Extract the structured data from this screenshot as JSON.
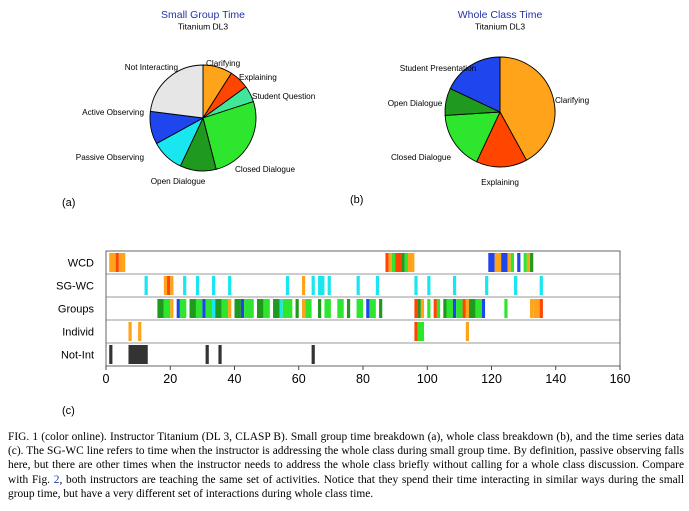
{
  "colors": {
    "Not Interacting": "#e6e6e6",
    "Clarifying": "#ffa31a",
    "Explaining": "#ff4500",
    "Student Question": "#40e69a",
    "Closed Dialogue": "#2ee62e",
    "Open Dialogue": "#1f9a1f",
    "Passive Observing": "#1ae6f0",
    "Active Observing": "#1f45ee",
    "Student Presentation": "#1f45ee"
  },
  "chart_data": [
    {
      "type": "pie",
      "panel_label": "(a)",
      "title": "Small Group Time",
      "subtitle": "Titanium DL3",
      "slices": [
        {
          "label": "Clarifying",
          "value": 9
        },
        {
          "label": "Explaining",
          "value": 6
        },
        {
          "label": "Student Question",
          "value": 5
        },
        {
          "label": "Closed Dialogue",
          "value": 26
        },
        {
          "label": "Open Dialogue",
          "value": 11
        },
        {
          "label": "Passive Observing",
          "value": 10
        },
        {
          "label": "Active Observing",
          "value": 10
        },
        {
          "label": "Not Interacting",
          "value": 23
        }
      ]
    },
    {
      "type": "pie",
      "panel_label": "(b)",
      "title": "Whole Class Time",
      "subtitle": "Titanium DL3",
      "slices": [
        {
          "label": "Clarifying",
          "value": 42
        },
        {
          "label": "Explaining",
          "value": 15
        },
        {
          "label": "Closed Dialogue",
          "value": 17
        },
        {
          "label": "Open Dialogue",
          "value": 8
        },
        {
          "label": "Student Presentation",
          "value": 18
        }
      ]
    },
    {
      "type": "timeline",
      "panel_label": "(c)",
      "xlim": [
        0,
        160
      ],
      "xticks": [
        "0",
        "20",
        "40",
        "60",
        "80",
        "100",
        "120",
        "140",
        "160"
      ],
      "rows": [
        "WCD",
        "SG-WC",
        "Groups",
        "Individ",
        "Not-Int"
      ],
      "segments": {
        "WCD": [
          [
            1,
            3,
            "Clarifying"
          ],
          [
            3,
            4,
            "Explaining"
          ],
          [
            4,
            6,
            "Clarifying"
          ],
          [
            87,
            88,
            "Explaining"
          ],
          [
            88,
            89,
            "Clarifying"
          ],
          [
            89,
            90,
            "Closed Dialogue"
          ],
          [
            90,
            92,
            "Explaining"
          ],
          [
            92,
            93,
            "Open Dialogue"
          ],
          [
            93,
            94,
            "Closed Dialogue"
          ],
          [
            94,
            96,
            "Clarifying"
          ],
          [
            119,
            121,
            "Active Observing"
          ],
          [
            121,
            123,
            "Clarifying"
          ],
          [
            123,
            125,
            "Active Observing"
          ],
          [
            125,
            126,
            "Clarifying"
          ],
          [
            126,
            127,
            "Closed Dialogue"
          ],
          [
            128,
            129,
            "Active Observing"
          ],
          [
            130,
            131,
            "Closed Dialogue"
          ],
          [
            131,
            132,
            "Clarifying"
          ],
          [
            132,
            133,
            "Open Dialogue"
          ]
        ],
        "SG-WC": [
          [
            12,
            13,
            "Passive Observing"
          ],
          [
            18,
            19,
            "Clarifying"
          ],
          [
            19,
            20,
            "Explaining"
          ],
          [
            20,
            21,
            "Clarifying"
          ],
          [
            24,
            25,
            "Passive Observing"
          ],
          [
            28,
            29,
            "Passive Observing"
          ],
          [
            33,
            34,
            "Passive Observing"
          ],
          [
            38,
            39,
            "Passive Observing"
          ],
          [
            56,
            57,
            "Passive Observing"
          ],
          [
            61,
            62,
            "Clarifying"
          ],
          [
            64,
            65,
            "Passive Observing"
          ],
          [
            66,
            68,
            "Passive Observing"
          ],
          [
            69,
            70,
            "Passive Observing"
          ],
          [
            78,
            79,
            "Passive Observing"
          ],
          [
            84,
            85,
            "Passive Observing"
          ],
          [
            96,
            97,
            "Passive Observing"
          ],
          [
            100,
            101,
            "Passive Observing"
          ],
          [
            108,
            109,
            "Passive Observing"
          ],
          [
            118,
            119,
            "Passive Observing"
          ],
          [
            127,
            128,
            "Passive Observing"
          ],
          [
            135,
            136,
            "Passive Observing"
          ]
        ],
        "Groups": [
          [
            16,
            18,
            "Open Dialogue"
          ],
          [
            18,
            20,
            "Closed Dialogue"
          ],
          [
            20,
            21,
            "Clarifying"
          ],
          [
            22,
            23,
            "Active Observing"
          ],
          [
            23,
            25,
            "Closed Dialogue"
          ],
          [
            26,
            28,
            "Open Dialogue"
          ],
          [
            28,
            30,
            "Closed Dialogue"
          ],
          [
            30,
            31,
            "Active Observing"
          ],
          [
            31,
            33,
            "Closed Dialogue"
          ],
          [
            33,
            34,
            "Passive Observing"
          ],
          [
            34,
            36,
            "Open Dialogue"
          ],
          [
            36,
            38,
            "Closed Dialogue"
          ],
          [
            38,
            39,
            "Clarifying"
          ],
          [
            40,
            42,
            "Open Dialogue"
          ],
          [
            42,
            43,
            "Active Observing"
          ],
          [
            43,
            46,
            "Closed Dialogue"
          ],
          [
            47,
            49,
            "Open Dialogue"
          ],
          [
            49,
            51,
            "Closed Dialogue"
          ],
          [
            52,
            54,
            "Open Dialogue"
          ],
          [
            54,
            55,
            "Passive Observing"
          ],
          [
            55,
            58,
            "Closed Dialogue"
          ],
          [
            59,
            60,
            "Open Dialogue"
          ],
          [
            61,
            62,
            "Clarifying"
          ],
          [
            62,
            64,
            "Closed Dialogue"
          ],
          [
            66,
            67,
            "Open Dialogue"
          ],
          [
            68,
            70,
            "Closed Dialogue"
          ],
          [
            72,
            74,
            "Closed Dialogue"
          ],
          [
            75,
            76,
            "Open Dialogue"
          ],
          [
            78,
            80,
            "Closed Dialogue"
          ],
          [
            81,
            82,
            "Active Observing"
          ],
          [
            82,
            84,
            "Closed Dialogue"
          ],
          [
            85,
            86,
            "Open Dialogue"
          ],
          [
            96,
            97,
            "Explaining"
          ],
          [
            97,
            98,
            "Open Dialogue"
          ],
          [
            98,
            99,
            "Clarifying"
          ],
          [
            100,
            101,
            "Closed Dialogue"
          ],
          [
            102,
            103,
            "Explaining"
          ],
          [
            103,
            104,
            "Closed Dialogue"
          ],
          [
            105,
            106,
            "Open Dialogue"
          ],
          [
            106,
            108,
            "Closed Dialogue"
          ],
          [
            108,
            109,
            "Active Observing"
          ],
          [
            109,
            111,
            "Closed Dialogue"
          ],
          [
            111,
            112,
            "Explaining"
          ],
          [
            112,
            113,
            "Clarifying"
          ],
          [
            113,
            115,
            "Open Dialogue"
          ],
          [
            115,
            117,
            "Closed Dialogue"
          ],
          [
            117,
            118,
            "Active Observing"
          ],
          [
            124,
            125,
            "Closed Dialogue"
          ],
          [
            132,
            133,
            "Clarifying"
          ],
          [
            133,
            135,
            "Clarifying"
          ],
          [
            135,
            136,
            "Explaining"
          ]
        ],
        "Individ": [
          [
            7,
            8,
            "Clarifying"
          ],
          [
            10,
            11,
            "Clarifying"
          ],
          [
            96,
            97,
            "Explaining"
          ],
          [
            97,
            99,
            "Closed Dialogue"
          ],
          [
            112,
            113,
            "Clarifying"
          ]
        ],
        "Not-Int": [
          [
            1,
            2,
            "Not Interacting"
          ],
          [
            7,
            13,
            "Not Interacting"
          ],
          [
            31,
            32,
            "Not Interacting"
          ],
          [
            35,
            36,
            "Not Interacting"
          ],
          [
            64,
            65,
            "Not Interacting"
          ]
        ]
      }
    }
  ],
  "caption": {
    "part1": "FIG. 1 (color online).   Instructor Titanium (DL 3, CLASP B). Small group time breakdown (a), whole class breakdown (b), and the time series data (c). The SG-WC line refers to time when the instructor is addressing the whole class during small group time. By definition, passive observing falls here, but there are other times when the instructor needs to address the whole class briefly without calling for a whole class discussion. Compare with Fig. ",
    "fig_ref": "2",
    "part2": ", both instructors are teaching the same set of activities. Notice that they spend their time interacting in similar ways during the small group time, but have a very different set of interactions during whole class time."
  }
}
